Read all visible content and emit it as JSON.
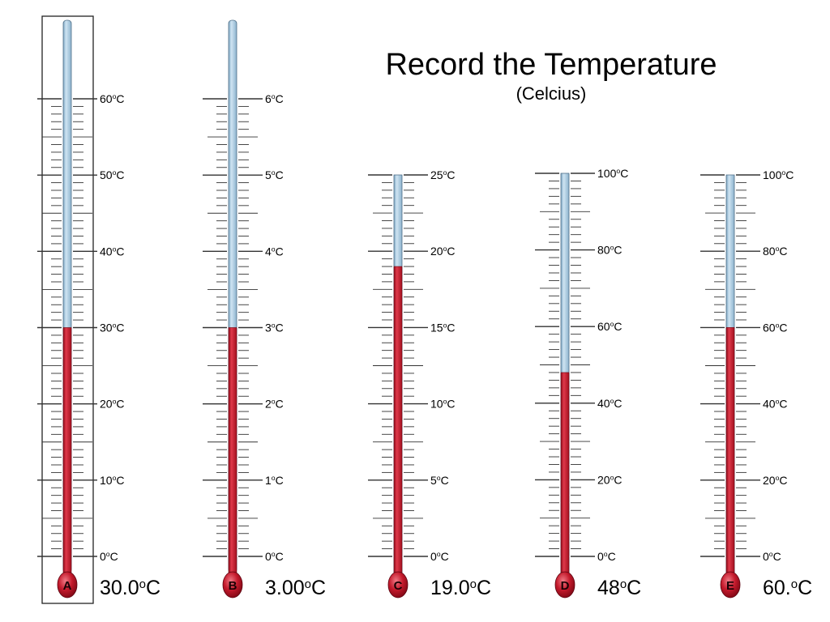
{
  "title": "Record the Temperature",
  "subtitle": "(Celcius)",
  "colors": {
    "mercury": "#c0162a",
    "tube": "#a9cde3",
    "tube_border": "#4f6f88",
    "tick": "#333333",
    "frame": "#222222",
    "bulb_highlight": "#e9606e"
  },
  "thermometers": [
    {
      "letter": "A",
      "reading": "30.0",
      "unit": "oC",
      "selected": true,
      "scale_min": 0,
      "scale_max": 60,
      "level": 30,
      "labels": [
        {
          "value": 0,
          "text": "0oC"
        },
        {
          "value": 10,
          "text": "10oC"
        },
        {
          "value": 20,
          "text": "20oC"
        },
        {
          "value": 30,
          "text": "30oC"
        },
        {
          "value": 40,
          "text": "40oC"
        },
        {
          "value": 50,
          "text": "50oC"
        },
        {
          "value": 60,
          "text": "60oC"
        }
      ]
    },
    {
      "letter": "B",
      "reading": "3.00",
      "unit": "oC",
      "selected": false,
      "scale_min": 0,
      "scale_max": 6,
      "level": 3,
      "labels": [
        {
          "value": 0,
          "text": "0oC"
        },
        {
          "value": 1,
          "text": "1oC"
        },
        {
          "value": 2,
          "text": "2oC"
        },
        {
          "value": 3,
          "text": "3oC"
        },
        {
          "value": 4,
          "text": "4oC"
        },
        {
          "value": 5,
          "text": "5oC"
        },
        {
          "value": 6,
          "text": "6oC"
        }
      ]
    },
    {
      "letter": "C",
      "reading": "19.0",
      "unit": "oC",
      "selected": false,
      "scale_min": 0,
      "scale_max": 25,
      "level": 19,
      "labels": [
        {
          "value": 0,
          "text": "0oC"
        },
        {
          "value": 5,
          "text": "5oC"
        },
        {
          "value": 10,
          "text": "10oC"
        },
        {
          "value": 15,
          "text": "15oC"
        },
        {
          "value": 20,
          "text": "20oC"
        },
        {
          "value": 25,
          "text": "25oC"
        }
      ]
    },
    {
      "letter": "D",
      "reading": "48",
      "unit": "oC",
      "selected": false,
      "scale_min": 0,
      "scale_max": 100,
      "level": 48,
      "labels": [
        {
          "value": 0,
          "text": "0oC"
        },
        {
          "value": 20,
          "text": "20oC"
        },
        {
          "value": 40,
          "text": "40oC"
        },
        {
          "value": 60,
          "text": "60oC"
        },
        {
          "value": 80,
          "text": "80oC"
        },
        {
          "value": 100,
          "text": "100oC"
        }
      ]
    },
    {
      "letter": "E",
      "reading": "60.",
      "unit": "oC",
      "selected": false,
      "scale_min": 0,
      "scale_max": 100,
      "level": 60,
      "labels": [
        {
          "value": 0,
          "text": "0oC"
        },
        {
          "value": 20,
          "text": "20oC"
        },
        {
          "value": 40,
          "text": "40oC"
        },
        {
          "value": 60,
          "text": "60oC"
        },
        {
          "value": 80,
          "text": "80oC"
        },
        {
          "value": 100,
          "text": "100oC"
        }
      ]
    }
  ]
}
